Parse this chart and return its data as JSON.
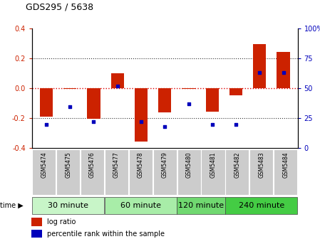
{
  "title": "GDS295 / 5638",
  "samples": [
    "GSM5474",
    "GSM5475",
    "GSM5476",
    "GSM5477",
    "GSM5478",
    "GSM5479",
    "GSM5480",
    "GSM5481",
    "GSM5482",
    "GSM5483",
    "GSM5484"
  ],
  "log_ratio": [
    -0.19,
    -0.005,
    -0.205,
    0.1,
    -0.355,
    -0.16,
    -0.005,
    -0.155,
    -0.045,
    0.295,
    0.245
  ],
  "percentile": [
    20,
    35,
    22,
    52,
    22,
    18,
    37,
    20,
    20,
    63,
    63
  ],
  "groups": [
    {
      "label": "30 minute",
      "start": 0,
      "end": 3,
      "color": "#c8f5c8"
    },
    {
      "label": "60 minute",
      "start": 3,
      "end": 6,
      "color": "#a8eda8"
    },
    {
      "label": "120 minute",
      "start": 6,
      "end": 8,
      "color": "#70d870"
    },
    {
      "label": "240 minute",
      "start": 8,
      "end": 11,
      "color": "#44cc44"
    }
  ],
  "ylim": [
    -0.4,
    0.4
  ],
  "yticks_left": [
    -0.4,
    -0.2,
    0.0,
    0.2,
    0.4
  ],
  "right_yticks": [
    0,
    25,
    50,
    75,
    100
  ],
  "bar_color": "#cc2200",
  "dot_color": "#0000bb",
  "zero_line_color": "#dd0000",
  "dotted_line_color": "#333333",
  "bg_color": "#ffffff",
  "sample_box_color": "#cccccc",
  "bar_width": 0.55,
  "title_fontsize": 9,
  "tick_fontsize": 7,
  "sample_fontsize": 5.5,
  "group_fontsize": 8,
  "legend_fontsize": 7
}
